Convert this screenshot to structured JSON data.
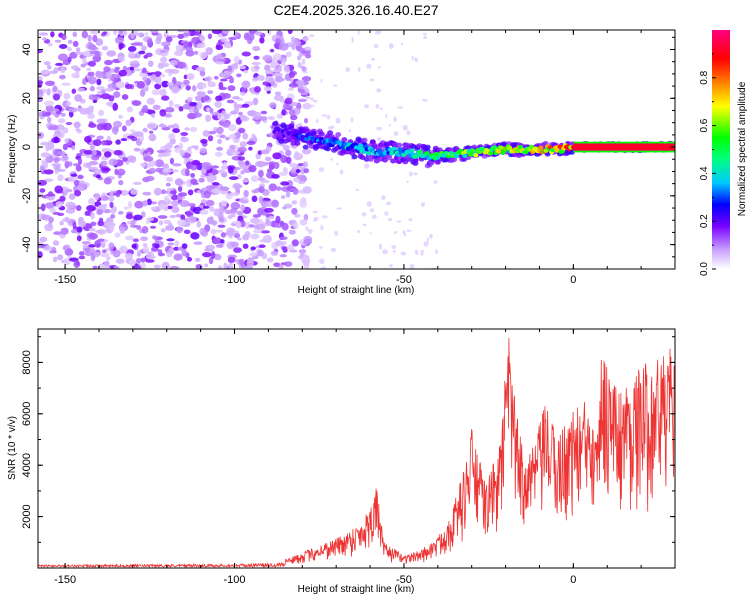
{
  "title": "C2E4.2025.326.16.40.E27",
  "chart_data": [
    {
      "type": "heatmap",
      "xlabel": "Height of straight line (km)",
      "ylabel": "Frequency (Hz)",
      "xlim": [
        -158,
        30
      ],
      "ylim": [
        -50,
        48
      ],
      "x_ticks": [
        -150,
        -100,
        -50,
        0
      ],
      "y_ticks": [
        -40,
        -20,
        0,
        20,
        40
      ],
      "colorbar": {
        "label": "Normalized spectral amplitude",
        "range": [
          0,
          1
        ],
        "ticks": [
          0.0,
          0.2,
          0.4,
          0.6,
          0.8
        ],
        "tick_labels": [
          "0.0",
          "0.2",
          "0.4",
          "0.6",
          "0.8"
        ],
        "colors": [
          "#ffffff",
          "#c9a0ff",
          "#7a00ff",
          "#0000ff",
          "#00c8ff",
          "#00ff40",
          "#ffff00",
          "#ff8000",
          "#ff0000",
          "#ff0080"
        ]
      },
      "features": {
        "noise_region_km": [
          -158,
          -80
        ],
        "signal_trace": [
          {
            "x": -88,
            "f": 6,
            "amp": 0.2
          },
          {
            "x": -80,
            "f": 4,
            "amp": 0.3
          },
          {
            "x": -72,
            "f": 2,
            "amp": 0.35
          },
          {
            "x": -65,
            "f": 0,
            "amp": 0.4
          },
          {
            "x": -58,
            "f": -2,
            "amp": 0.4
          },
          {
            "x": -50,
            "f": -2,
            "amp": 0.45
          },
          {
            "x": -42,
            "f": -4,
            "amp": 0.5
          },
          {
            "x": -35,
            "f": -3,
            "amp": 0.6
          },
          {
            "x": -28,
            "f": -2,
            "amp": 0.65
          },
          {
            "x": -20,
            "f": -1,
            "amp": 0.7
          },
          {
            "x": -12,
            "f": -1,
            "amp": 0.75
          },
          {
            "x": -5,
            "f": -1,
            "amp": 0.8
          },
          {
            "x": 0,
            "f": 0,
            "amp": 0.9
          },
          {
            "x": 10,
            "f": 0,
            "amp": 0.95
          },
          {
            "x": 20,
            "f": 0,
            "amp": 1.0
          },
          {
            "x": 30,
            "f": 0,
            "amp": 1.0
          }
        ]
      }
    },
    {
      "type": "line",
      "xlabel": "Height of straight line (km)",
      "ylabel": "SNR (10 * v/v)",
      "xlim": [
        -158,
        30
      ],
      "ylim": [
        0,
        9300
      ],
      "x_ticks": [
        -150,
        -100,
        -50,
        0
      ],
      "y_ticks": [
        2000,
        4000,
        6000,
        8000
      ],
      "line_color": "#ee3333",
      "envelope": [
        {
          "x": -158,
          "y": 120
        },
        {
          "x": -100,
          "y": 150
        },
        {
          "x": -88,
          "y": 200
        },
        {
          "x": -82,
          "y": 500
        },
        {
          "x": -75,
          "y": 900
        },
        {
          "x": -68,
          "y": 1300
        },
        {
          "x": -62,
          "y": 1900
        },
        {
          "x": -58,
          "y": 3200
        },
        {
          "x": -56,
          "y": 1000
        },
        {
          "x": -50,
          "y": 500
        },
        {
          "x": -45,
          "y": 700
        },
        {
          "x": -40,
          "y": 1200
        },
        {
          "x": -36,
          "y": 2200
        },
        {
          "x": -32,
          "y": 4000
        },
        {
          "x": -30,
          "y": 5500
        },
        {
          "x": -26,
          "y": 3300
        },
        {
          "x": -22,
          "y": 4600
        },
        {
          "x": -19,
          "y": 9200
        },
        {
          "x": -16,
          "y": 5200
        },
        {
          "x": -12,
          "y": 4700
        },
        {
          "x": -8,
          "y": 6500
        },
        {
          "x": -5,
          "y": 5200
        },
        {
          "x": 0,
          "y": 6200
        },
        {
          "x": 5,
          "y": 6700
        },
        {
          "x": 9,
          "y": 8700
        },
        {
          "x": 13,
          "y": 7000
        },
        {
          "x": 18,
          "y": 7600
        },
        {
          "x": 23,
          "y": 8200
        },
        {
          "x": 27,
          "y": 8400
        },
        {
          "x": 30,
          "y": 8700
        }
      ]
    }
  ]
}
